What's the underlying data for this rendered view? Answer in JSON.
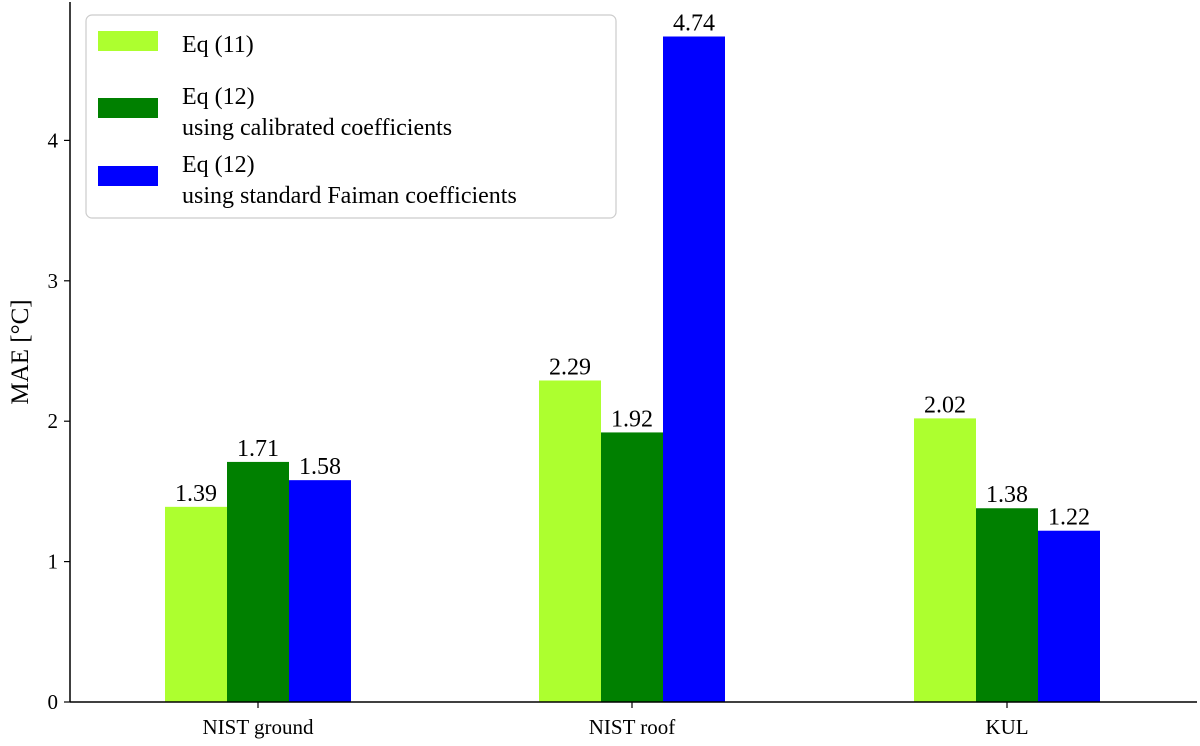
{
  "chart_data": {
    "type": "bar",
    "categories": [
      "NIST ground",
      "NIST roof",
      "KUL"
    ],
    "series": [
      {
        "name": "Eq (11)",
        "values": [
          1.39,
          2.29,
          2.02
        ],
        "color": "#adff2f"
      },
      {
        "name": "Eq (12)\nusing calibrated coefficients",
        "values": [
          1.71,
          1.92,
          1.38
        ],
        "color": "#008000"
      },
      {
        "name": "Eq (12)\nusing standard Faiman coefficients",
        "values": [
          1.58,
          4.74,
          1.22
        ],
        "color": "#0000ff"
      }
    ],
    "data_labels": [
      [
        "1.39",
        "2.29",
        "2.02"
      ],
      [
        "1.71",
        "1.92",
        "1.38"
      ],
      [
        "1.58",
        "4.74",
        "1.22"
      ]
    ],
    "title": "",
    "xlabel": "",
    "ylabel": "MAE [°C]",
    "ylim": [
      0,
      5.0
    ],
    "yticks": [
      0,
      1,
      2,
      3,
      4
    ],
    "grid": false,
    "legend": "top-left"
  }
}
